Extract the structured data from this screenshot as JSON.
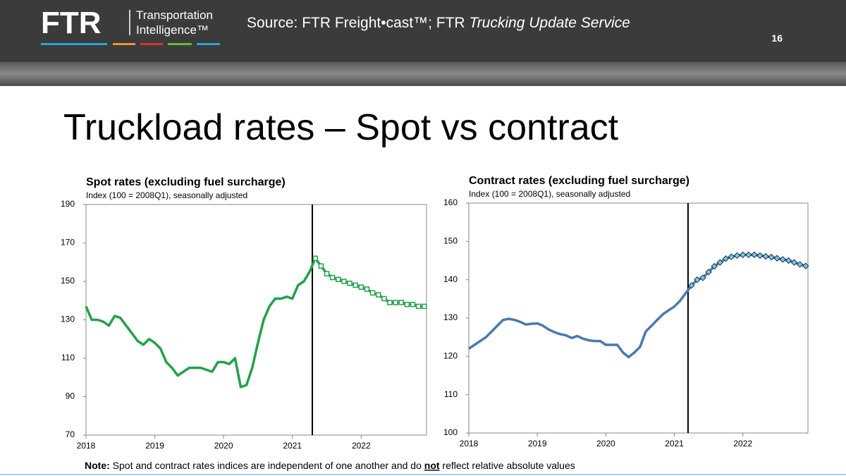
{
  "header": {
    "logo": "FTR",
    "logo_line1": "Transportation",
    "logo_line2": "Intelligence™",
    "source_prefix": "Source: FTR Freight•cast™; FTR ",
    "source_italic": "Trucking Update Service",
    "page_number": "16"
  },
  "title": "Truckload rates – Spot vs contract",
  "note": {
    "label": "Note:",
    "text1": " Spot and contract rates indices are independent of one another and do ",
    "emphasis": "not",
    "text2": " reflect relative absolute values"
  },
  "chart_data": [
    {
      "type": "line",
      "title": "Spot rates (excluding fuel surcharge)",
      "subtitle": "Index (100 = 2008Q1), seasonally adjusted",
      "color": "#1fa34a",
      "forecast_marker": "square",
      "divider_x": 2021.29,
      "xlim": [
        2018,
        2022.95
      ],
      "xticks": [
        2018,
        2019,
        2020,
        2021,
        2022
      ],
      "ylim": [
        70,
        190
      ],
      "yticks": [
        70,
        90,
        110,
        130,
        150,
        170,
        190
      ],
      "x": [
        2018,
        2018.083,
        2018.167,
        2018.25,
        2018.333,
        2018.417,
        2018.5,
        2018.583,
        2018.667,
        2018.75,
        2018.833,
        2018.917,
        2019,
        2019.083,
        2019.167,
        2019.25,
        2019.333,
        2019.417,
        2019.5,
        2019.583,
        2019.667,
        2019.75,
        2019.833,
        2019.917,
        2020,
        2020.083,
        2020.167,
        2020.25,
        2020.333,
        2020.417,
        2020.5,
        2020.583,
        2020.667,
        2020.75,
        2020.833,
        2020.917,
        2021,
        2021.083,
        2021.167,
        2021.25,
        2021.333,
        2021.417,
        2021.5,
        2021.583,
        2021.667,
        2021.75,
        2021.833,
        2021.917,
        2022,
        2022.083,
        2022.167,
        2022.25,
        2022.333,
        2022.417,
        2022.5,
        2022.583,
        2022.667,
        2022.75,
        2022.833,
        2022.917
      ],
      "values": [
        137,
        130,
        130,
        129,
        127,
        132,
        131,
        127,
        123,
        119,
        117,
        120,
        118,
        115,
        108,
        105,
        101,
        103,
        105,
        105,
        105,
        104,
        103,
        108,
        108,
        107,
        110,
        95,
        96,
        105,
        118,
        130,
        137,
        141,
        141,
        142,
        141,
        148,
        150,
        155,
        162,
        158,
        154,
        152,
        151,
        150,
        149,
        148,
        147,
        146,
        144,
        143,
        141,
        139,
        139,
        139,
        138,
        138,
        137,
        137
      ]
    },
    {
      "type": "line",
      "title": "Contract rates (excluding fuel surcharge)",
      "subtitle": "Index (100 = 2008Q1), seasonally adjusted",
      "color": "#4a78b5",
      "forecast_marker": "diamond",
      "divider_x": 2021.2,
      "xlim": [
        2018,
        2022.95
      ],
      "xticks": [
        2018,
        2019,
        2020,
        2021,
        2022
      ],
      "ylim": [
        100,
        160
      ],
      "yticks": [
        100,
        110,
        120,
        130,
        140,
        150,
        160
      ],
      "x": [
        2018,
        2018.083,
        2018.167,
        2018.25,
        2018.333,
        2018.417,
        2018.5,
        2018.583,
        2018.667,
        2018.75,
        2018.833,
        2018.917,
        2019,
        2019.083,
        2019.167,
        2019.25,
        2019.333,
        2019.417,
        2019.5,
        2019.583,
        2019.667,
        2019.75,
        2019.833,
        2019.917,
        2020,
        2020.083,
        2020.167,
        2020.25,
        2020.333,
        2020.417,
        2020.5,
        2020.583,
        2020.667,
        2020.75,
        2020.833,
        2020.917,
        2021,
        2021.083,
        2021.167,
        2021.25,
        2021.333,
        2021.417,
        2021.5,
        2021.583,
        2021.667,
        2021.75,
        2021.833,
        2021.917,
        2022,
        2022.083,
        2022.167,
        2022.25,
        2022.333,
        2022.417,
        2022.5,
        2022.583,
        2022.667,
        2022.75,
        2022.833,
        2022.917
      ],
      "values": [
        122,
        123,
        124,
        125,
        126.5,
        128,
        129.5,
        129.8,
        129.5,
        129,
        128.3,
        128.5,
        128.6,
        128,
        127,
        126.3,
        125.8,
        125.5,
        124.8,
        125.3,
        124.6,
        124.2,
        124,
        124,
        123,
        123,
        123,
        121,
        119.8,
        121,
        122.5,
        126.5,
        128,
        129.5,
        131,
        132,
        133,
        134.5,
        136.5,
        138.5,
        140,
        140.5,
        142,
        143.5,
        144.5,
        145.5,
        146,
        146.3,
        146.5,
        146.5,
        146.5,
        146.3,
        146.1,
        145.9,
        145.6,
        145.3,
        145,
        144.5,
        144,
        143.6
      ]
    }
  ]
}
